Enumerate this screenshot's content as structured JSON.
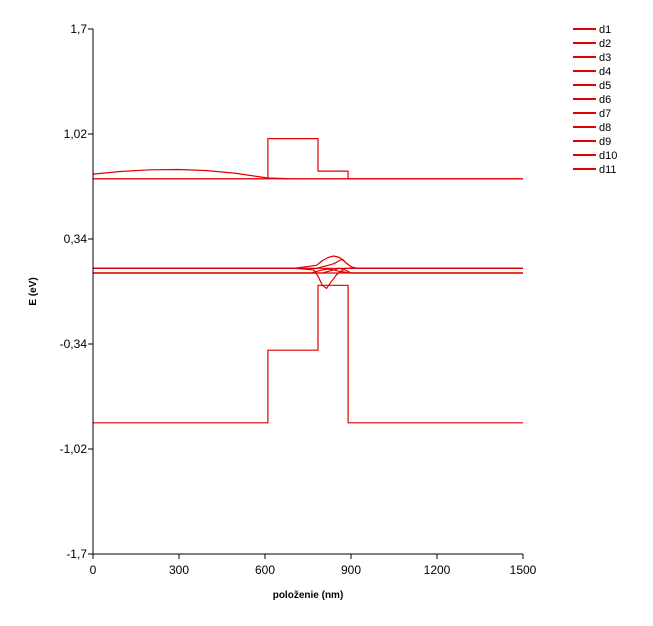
{
  "chart_data": {
    "type": "line",
    "xlabel": "položenie (nm)",
    "ylabel": "E (eV)",
    "xlim": [
      0,
      1500
    ],
    "ylim": [
      -1.7,
      1.7
    ],
    "xticks": [
      0,
      300,
      600,
      900,
      1200,
      1500
    ],
    "yticks": [
      -1.7,
      -1.02,
      -0.34,
      0.34,
      1.02,
      1.7
    ],
    "xtick_labels": [
      "0",
      "300",
      "600",
      "900",
      "1200",
      "1500"
    ],
    "ytick_labels": [
      "-1,7",
      "-1,02",
      "-0,34",
      "0,34",
      "1,02",
      "1,7"
    ],
    "grid": false,
    "legend_position": "top-right",
    "line_color": "#e00000",
    "series": [
      {
        "name": "d1",
        "x": [
          0,
          610,
          610,
          785,
          785,
          890,
          890,
          1500
        ],
        "y": [
          0.73,
          0.73,
          0.99,
          0.99,
          0.78,
          0.78,
          0.73,
          0.73
        ]
      },
      {
        "name": "d2",
        "x": [
          0,
          610,
          610,
          785,
          785,
          890,
          890,
          1500
        ],
        "y": [
          -0.85,
          -0.85,
          -0.38,
          -0.38,
          0.04,
          0.04,
          -0.85,
          -0.85
        ]
      },
      {
        "name": "d3",
        "x": [
          0,
          100,
          200,
          300,
          400,
          500,
          610,
          700,
          900,
          1500
        ],
        "y": [
          0.76,
          0.778,
          0.788,
          0.79,
          0.783,
          0.765,
          0.735,
          0.73,
          0.73,
          0.73
        ]
      },
      {
        "name": "d4",
        "x": [
          0,
          500,
          700,
          780,
          800,
          820,
          840,
          860,
          880,
          900,
          920,
          1000,
          1500
        ],
        "y": [
          0.15,
          0.15,
          0.15,
          0.17,
          0.2,
          0.22,
          0.23,
          0.22,
          0.19,
          0.16,
          0.15,
          0.15,
          0.15
        ]
      },
      {
        "name": "d5",
        "x": [
          0,
          700,
          780,
          800,
          820,
          840,
          860,
          870,
          880,
          900,
          920,
          1000,
          1500
        ],
        "y": [
          0.15,
          0.15,
          0.15,
          0.16,
          0.17,
          0.18,
          0.2,
          0.21,
          0.19,
          0.16,
          0.15,
          0.15,
          0.15
        ]
      },
      {
        "name": "d6",
        "x": [
          0,
          700,
          770,
          785,
          800,
          815,
          830,
          850,
          880,
          900,
          1000,
          1500
        ],
        "y": [
          0.15,
          0.15,
          0.14,
          0.1,
          0.04,
          0.02,
          0.06,
          0.11,
          0.15,
          0.15,
          0.15,
          0.15
        ]
      },
      {
        "name": "d7",
        "x": [
          0,
          700,
          760,
          780,
          800,
          820,
          840,
          860,
          900,
          920,
          1000,
          1500
        ],
        "y": [
          0.12,
          0.12,
          0.12,
          0.13,
          0.14,
          0.145,
          0.14,
          0.13,
          0.12,
          0.12,
          0.12,
          0.12
        ]
      },
      {
        "name": "d8",
        "x": [
          0,
          700,
          780,
          800,
          820,
          840,
          860,
          880,
          900,
          950,
          1500
        ],
        "y": [
          0.12,
          0.12,
          0.12,
          0.12,
          0.13,
          0.14,
          0.15,
          0.14,
          0.12,
          0.12,
          0.12
        ]
      },
      {
        "name": "d9",
        "x": [
          0,
          1500
        ],
        "y": [
          0.12,
          0.12
        ]
      },
      {
        "name": "d10",
        "x": [
          0,
          1500
        ],
        "y": [
          0.15,
          0.15
        ]
      },
      {
        "name": "d11",
        "x": [
          0,
          1500
        ],
        "y": [
          0.73,
          0.73
        ]
      }
    ]
  }
}
